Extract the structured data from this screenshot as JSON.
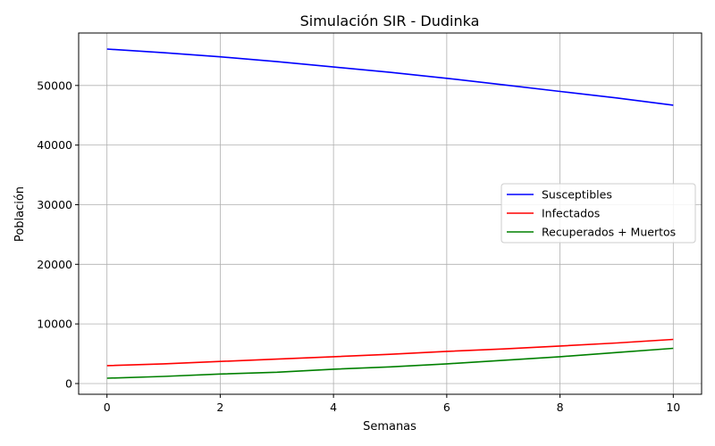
{
  "chart_data": {
    "type": "line",
    "title": "Simulación SIR - Dudinka",
    "xlabel": "Semanas",
    "ylabel": "Población",
    "xlim": [
      -0.5,
      10.5
    ],
    "ylim": [
      -1800,
      58800
    ],
    "xticks": [
      0,
      2,
      4,
      6,
      8,
      10
    ],
    "yticks": [
      0,
      10000,
      20000,
      30000,
      40000,
      50000
    ],
    "grid": true,
    "legend": "center-right",
    "x": [
      0,
      1,
      2,
      3,
      4,
      5,
      6,
      7,
      8,
      9,
      10
    ],
    "series": [
      {
        "name": "Susceptibles",
        "color": "#0000ff",
        "values": [
          56100,
          55500,
          54800,
          54000,
          53100,
          52200,
          51200,
          50100,
          49000,
          47900,
          46700
        ]
      },
      {
        "name": "Infectados",
        "color": "#ff0000",
        "values": [
          3000,
          3300,
          3700,
          4100,
          4500,
          4900,
          5400,
          5800,
          6300,
          6800,
          7400
        ]
      },
      {
        "name": "Recuperados + Muertos",
        "color": "#008000",
        "values": [
          900,
          1200,
          1600,
          1900,
          2400,
          2800,
          3300,
          3900,
          4500,
          5200,
          5900
        ]
      }
    ]
  }
}
